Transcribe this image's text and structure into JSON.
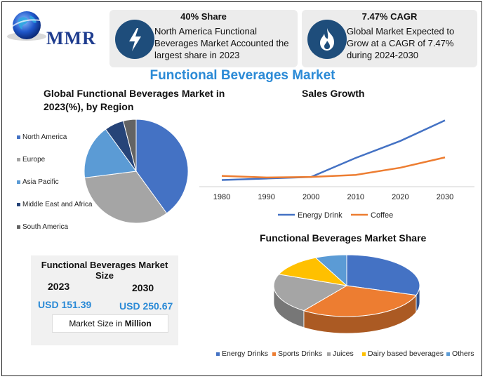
{
  "brand": {
    "name": "MMR"
  },
  "cards": [
    {
      "title": "40% Share",
      "body": "North America Functional Beverages Market Accounted the largest share in 2023",
      "icon": "lightning-icon"
    },
    {
      "title": "7.47% CAGR",
      "body": "Global Market Expected to Grow at a CAGR of 7.47% during 2024-2030",
      "icon": "flame-icon"
    }
  ],
  "main_title": "Functional Beverages Market",
  "market_size": {
    "title": "Functional Beverages Market Size",
    "years": [
      "2023",
      "2030"
    ],
    "values": [
      "USD 151.39",
      "USD 250.67"
    ],
    "unit_prefix": "Market Size in",
    "unit_bold": "Million"
  },
  "chart_data": [
    {
      "type": "pie",
      "title": "Global Functional Beverages Market in 2023(%), by Region",
      "legend_position": "left",
      "categories": [
        "North America",
        "Europe",
        "Asia Pacific",
        "Middle East and Africa",
        "South America"
      ],
      "values": [
        40,
        33,
        17,
        6,
        4
      ],
      "colors": [
        "#4472c4",
        "#a5a5a5",
        "#5b9bd5",
        "#264478",
        "#636363"
      ]
    },
    {
      "type": "line",
      "title": "Sales Growth",
      "x": [
        "1980",
        "1990",
        "2000",
        "2010",
        "2020",
        "2030"
      ],
      "series": [
        {
          "name": "Energy Drink",
          "values": [
            2,
            5,
            8,
            45,
            78,
            118
          ],
          "color": "#4472c4"
        },
        {
          "name": "Coffee",
          "values": [
            10,
            7,
            8,
            12,
            26,
            46
          ],
          "color": "#ed7d31"
        }
      ],
      "grid": false,
      "legend_position": "bottom"
    },
    {
      "type": "pie",
      "title": "Functional Beverages Market Share",
      "style": "3d",
      "legend_position": "bottom",
      "categories": [
        "Energy Drinks",
        "Sports Drinks",
        "Juices",
        "Dairy based beverages",
        "Others"
      ],
      "values": [
        30,
        30,
        21,
        12,
        7
      ],
      "colors": [
        "#4472c4",
        "#ed7d31",
        "#a5a5a5",
        "#ffc000",
        "#5b9bd5"
      ]
    }
  ]
}
